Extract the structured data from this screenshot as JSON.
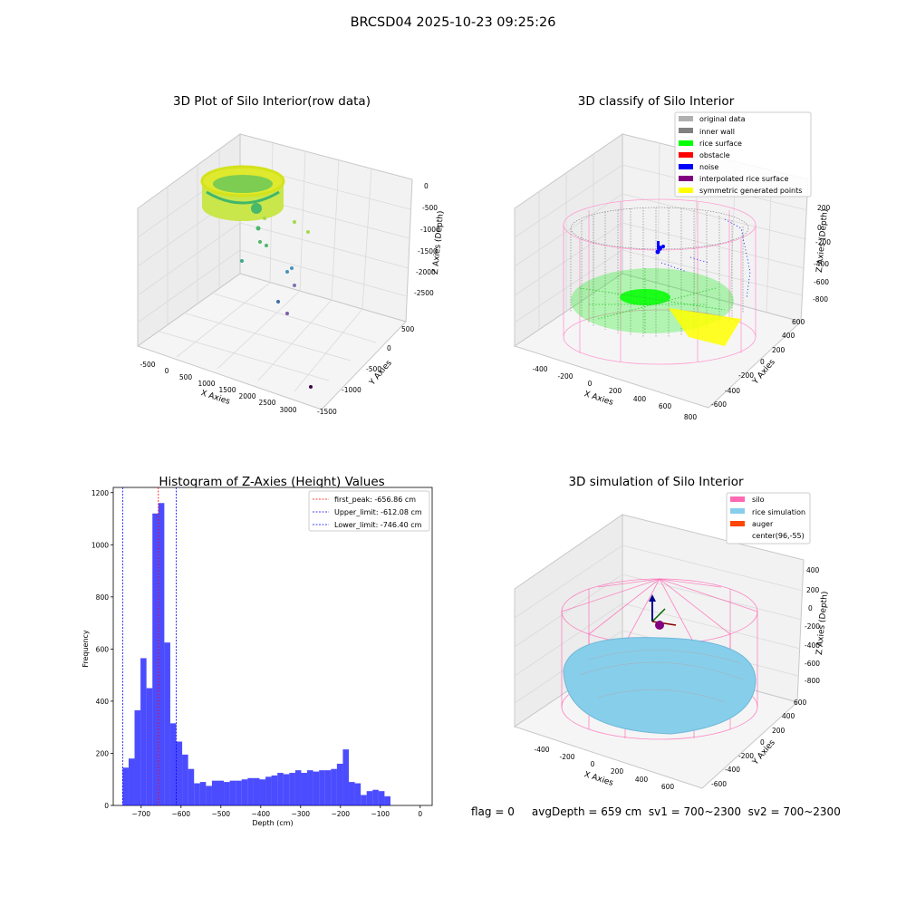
{
  "figure": {
    "title": "BRCSD04 2025-10-23 09:25:26",
    "footer": "flag = 0     avgDepth = 659 cm  sv1 = 700~2300  sv2 = 700~2300"
  },
  "panel1": {
    "title": "3D Plot of Silo Interior(row data)",
    "xlabel": "X Axies",
    "ylabel": "Y Axies",
    "zlabel": "Z Axies (Depth)",
    "xticks": [
      "-500",
      "0",
      "500",
      "1000",
      "1500",
      "2000",
      "2500",
      "3000"
    ],
    "yticks": [
      "500",
      "0",
      "-500",
      "-1000",
      "-1500"
    ],
    "zticks": [
      "0",
      "-500",
      "-1000",
      "-1500",
      "-2000",
      "-2500"
    ]
  },
  "panel2": {
    "title": "3D classify of Silo Interior",
    "xlabel": "X Axies",
    "ylabel": "Y Axies",
    "zlabel": "Z Axies (Depth)",
    "xticks": [
      "-400",
      "-200",
      "0",
      "200",
      "400",
      "600",
      "800"
    ],
    "yticks": [
      "600",
      "400",
      "200",
      "0",
      "-200",
      "-400",
      "-600"
    ],
    "zticks": [
      "200",
      "0",
      "-200",
      "-400",
      "-600",
      "-800"
    ],
    "legend": [
      {
        "label": "original data",
        "color": "#b0b0b0"
      },
      {
        "label": "inner wall",
        "color": "#808080"
      },
      {
        "label": "rice surface",
        "color": "#00ff00"
      },
      {
        "label": "obstacle",
        "color": "#ff0000"
      },
      {
        "label": "noise",
        "color": "#0000ff"
      },
      {
        "label": "interpolated rice surface",
        "color": "#800080"
      },
      {
        "label": "symmetric generated points",
        "color": "#ffff00"
      }
    ]
  },
  "panel4": {
    "title": "3D simulation of Silo Interior",
    "xlabel": "X Axies",
    "ylabel": "Y Axies",
    "zlabel": "Z Axies (Depth)",
    "xticks": [
      "-400",
      "-200",
      "0",
      "200",
      "400",
      "600"
    ],
    "yticks": [
      "600",
      "400",
      "200",
      "0",
      "-200",
      "-400",
      "-600"
    ],
    "zticks": [
      "400",
      "200",
      "0",
      "-200",
      "-400",
      "-600",
      "-800"
    ],
    "legend": [
      {
        "label": "silo",
        "color": "#ff69b4"
      },
      {
        "label": "rice simulation",
        "color": "#87ceeb"
      },
      {
        "label": "auger",
        "color": "#ff4500"
      },
      {
        "label": "center(96,-55)",
        "color": ""
      }
    ]
  },
  "chart_data": [
    {
      "type": "scatter",
      "title": "3D Plot of Silo Interior(row data)",
      "xlabel": "X Axies",
      "ylabel": "Y Axies",
      "zlabel": "Z Axies (Depth)",
      "xlim": [
        -700,
        3300
      ],
      "ylim": [
        -1600,
        700
      ],
      "zlim": [
        -3000,
        200
      ]
    },
    {
      "type": "scatter",
      "title": "3D classify of Silo Interior",
      "series": [
        {
          "name": "original data"
        },
        {
          "name": "inner wall"
        },
        {
          "name": "rice surface"
        },
        {
          "name": "obstacle"
        },
        {
          "name": "noise"
        },
        {
          "name": "interpolated rice surface"
        },
        {
          "name": "symmetric generated points"
        }
      ]
    },
    {
      "type": "bar",
      "title": "Histogram of Z-Axies (Height) Values",
      "xlabel": "Depth (cm)",
      "ylabel": "Frequency",
      "xlim": [
        -770,
        30
      ],
      "ylim": [
        0,
        1220
      ],
      "xticks": [
        -700,
        -600,
        -500,
        -400,
        -300,
        -200,
        -100,
        0
      ],
      "yticks": [
        0,
        200,
        400,
        600,
        800,
        1000,
        1200
      ],
      "bin_width": 14.93,
      "bins_start": -746.4,
      "values": [
        145,
        180,
        365,
        565,
        450,
        1120,
        1160,
        625,
        315,
        245,
        195,
        140,
        85,
        90,
        75,
        95,
        95,
        90,
        95,
        95,
        100,
        105,
        105,
        100,
        110,
        115,
        125,
        120,
        125,
        135,
        125,
        135,
        130,
        135,
        135,
        140,
        160,
        215,
        90,
        85,
        40,
        55,
        60,
        55,
        35
      ],
      "lines": [
        {
          "name": "first_peak: -656.86 cm",
          "x": -656.86,
          "color": "#ff0000"
        },
        {
          "name": "Upper_limit: -612.08 cm",
          "x": -612.08,
          "color": "#0000ff"
        },
        {
          "name": "Lower_limit: -746.40 cm",
          "x": -746.4,
          "color": "#0000ff"
        }
      ]
    },
    {
      "type": "scatter",
      "title": "3D simulation of Silo Interior",
      "series": [
        {
          "name": "silo"
        },
        {
          "name": "rice simulation"
        },
        {
          "name": "auger"
        },
        {
          "name": "center(96,-55)"
        }
      ]
    }
  ]
}
